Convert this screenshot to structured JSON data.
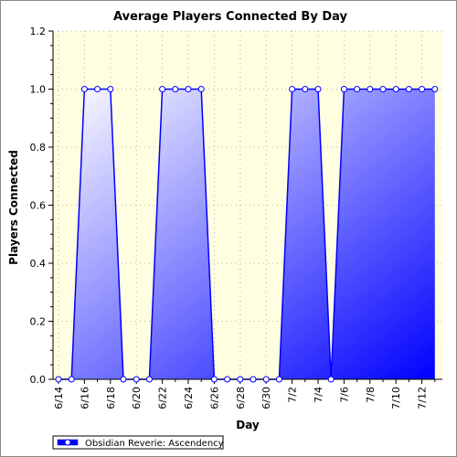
{
  "chart_data": {
    "type": "area",
    "title": "Average Players Connected By Day",
    "xlabel": "Day",
    "ylabel": "Players Connected",
    "ylim": [
      0,
      1.2
    ],
    "yticks": [
      "0.0",
      "0.2",
      "0.4",
      "0.6",
      "0.8",
      "1.0",
      "1.2"
    ],
    "xticks": [
      "6/14",
      "6/16",
      "6/18",
      "6/20",
      "6/22",
      "6/24",
      "6/26",
      "6/28",
      "6/30",
      "7/2",
      "7/4",
      "7/6",
      "7/8",
      "7/10",
      "7/12"
    ],
    "x": [
      "6/14",
      "6/15",
      "6/16",
      "6/17",
      "6/18",
      "6/19",
      "6/20",
      "6/21",
      "6/22",
      "6/23",
      "6/24",
      "6/25",
      "6/26",
      "6/27",
      "6/28",
      "6/29",
      "6/30",
      "7/1",
      "7/2",
      "7/3",
      "7/4",
      "7/5",
      "7/6",
      "7/7",
      "7/8",
      "7/9",
      "7/10",
      "7/11",
      "7/12",
      "7/13"
    ],
    "series": [
      {
        "name": "Obsidian Reverie: Ascendency",
        "values": [
          0,
          0,
          1,
          1,
          1,
          0,
          0,
          0,
          1,
          1,
          1,
          1,
          0,
          0,
          0,
          0,
          0,
          0,
          1,
          1,
          1,
          0,
          1,
          1,
          1,
          1,
          1,
          1,
          1,
          1
        ]
      }
    ],
    "grid": true,
    "legend": "bottom-left",
    "colors": {
      "plot_background": "#fffee0",
      "line": "#0000ff",
      "fill_light": "#ffffff",
      "fill_dark": "#0000ff",
      "grid": "#a0a0a0"
    }
  }
}
